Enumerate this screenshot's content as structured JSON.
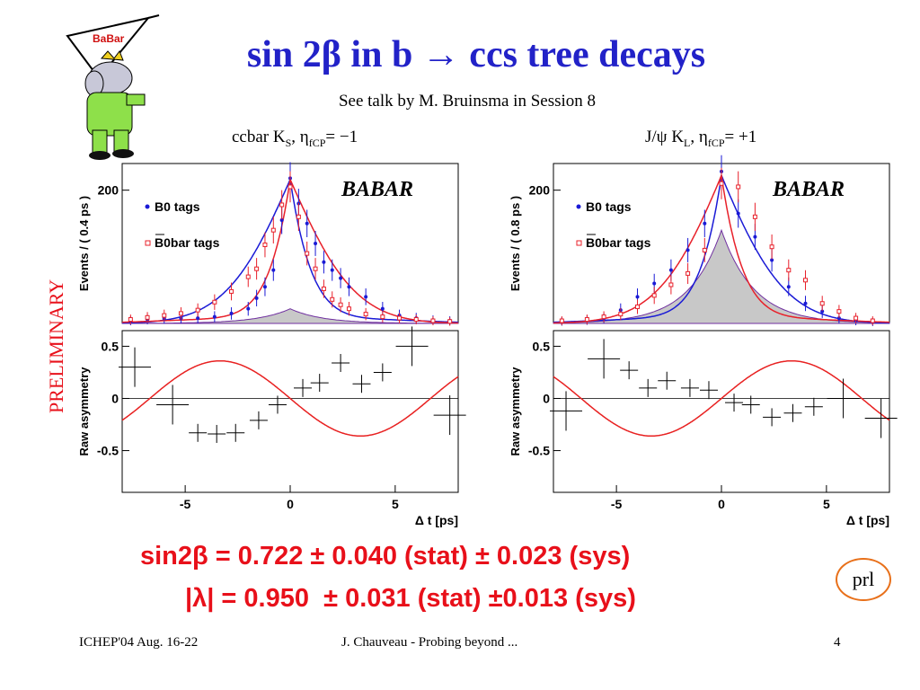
{
  "slide": {
    "title": "sin 2β in b → ccs tree decays",
    "subtitle": "See talk by M. Bruinsma in Session 8",
    "preliminary": "PRELIMINARY",
    "logo_text": "BaBar",
    "results": {
      "line1": "sin2β = 0.722 ± 0.040 (stat) ± 0.023 (sys)",
      "line2": "|λ| = 0.950  ± 0.031 (stat) ±0.013 (sys)"
    },
    "prl_badge": "prl",
    "footer": {
      "left": "ICHEP'04 Aug. 16-22",
      "center": "J. Chauveau - Probing beyond ...",
      "page": "4"
    }
  },
  "colors": {
    "title": "#2222c8",
    "results": "#e8101a",
    "b0": "#1a1ad6",
    "b0bar": "#e8202a",
    "asym_fit": "#e82020",
    "background": "#c8c8c8"
  },
  "chart_data": [
    {
      "type": "scatter",
      "channel_label": "ccbar K_S, η_fCP= −1",
      "logo": "BABAR",
      "top": {
        "ylabel": "Events / ( 0.4 ps )",
        "ytick": "200",
        "ylim": [
          0,
          240
        ],
        "legend": [
          "B0 tags",
          "B0bar tags"
        ],
        "series": [
          {
            "name": "B0 tags",
            "x": [
              -7.6,
              -6.8,
              -6.0,
              -5.2,
              -4.4,
              -3.6,
              -2.8,
              -2.0,
              -1.6,
              -1.2,
              -0.8,
              -0.4,
              0.0,
              0.4,
              0.8,
              1.2,
              1.6,
              2.0,
              2.4,
              2.8,
              3.6,
              4.4,
              5.2,
              6.0,
              6.8,
              7.6
            ],
            "y": [
              4,
              6,
              7,
              8,
              8,
              10,
              15,
              22,
              38,
              55,
              80,
              155,
              218,
              180,
              150,
              120,
              92,
              80,
              68,
              55,
              40,
              22,
              12,
              8,
              5,
              4
            ]
          },
          {
            "name": "B0bar tags",
            "x": [
              -7.6,
              -6.8,
              -6.0,
              -5.2,
              -4.4,
              -3.6,
              -2.8,
              -2.0,
              -1.6,
              -1.2,
              -0.8,
              -0.4,
              0.0,
              0.4,
              0.8,
              1.2,
              1.6,
              2.0,
              2.4,
              2.8,
              3.6,
              4.4,
              5.2,
              6.0,
              6.8,
              7.6
            ],
            "y": [
              6,
              9,
              12,
              15,
              20,
              32,
              48,
              70,
              82,
              118,
              140,
              178,
              205,
              160,
              105,
              82,
              52,
              36,
              28,
              22,
              14,
              10,
              8,
              6,
              4,
              3
            ]
          }
        ]
      },
      "bottom": {
        "ylabel": "Raw asymmetry",
        "yticks": [
          "0.5",
          "0",
          "-0.5"
        ],
        "ylim": [
          -0.9,
          0.65
        ],
        "xticks": [
          "-5",
          "0",
          "5"
        ],
        "xlabel": "Δ t [ps]",
        "xlim": [
          -8,
          8
        ],
        "points": {
          "x": [
            -7.4,
            -5.6,
            -4.4,
            -3.5,
            -2.6,
            -1.5,
            -0.6,
            0.6,
            1.4,
            2.4,
            3.4,
            4.4,
            5.8,
            7.6
          ],
          "y": [
            0.3,
            -0.06,
            -0.33,
            -0.34,
            -0.33,
            -0.21,
            -0.06,
            0.1,
            0.15,
            0.34,
            0.14,
            0.25,
            0.5,
            -0.16
          ]
        }
      }
    },
    {
      "type": "scatter",
      "channel_label": "J/ψ K_L, η_fCP= +1",
      "logo": "BABAR",
      "top": {
        "ylabel": "Events / ( 0.8 ps )",
        "ytick": "200",
        "ylim": [
          0,
          240
        ],
        "legend": [
          "B0 tags",
          "B0bar tags"
        ],
        "series": [
          {
            "name": "B0 tags",
            "x": [
              -7.6,
              -6.4,
              -5.6,
              -4.8,
              -4.0,
              -3.2,
              -2.4,
              -1.6,
              -0.8,
              0.0,
              0.8,
              1.6,
              2.4,
              3.2,
              4.0,
              4.8,
              5.6,
              6.4,
              7.2
            ],
            "y": [
              3,
              5,
              8,
              20,
              40,
              60,
              80,
              110,
              150,
              228,
              165,
              130,
              95,
              55,
              30,
              18,
              8,
              4,
              2
            ]
          },
          {
            "name": "B0bar tags",
            "x": [
              -7.6,
              -6.4,
              -5.6,
              -4.8,
              -4.0,
              -3.2,
              -2.4,
              -1.6,
              -0.8,
              0.0,
              0.8,
              1.6,
              2.4,
              3.2,
              4.0,
              4.8,
              5.6,
              6.4,
              7.2
            ],
            "y": [
              4,
              6,
              10,
              14,
              25,
              42,
              58,
              75,
              110,
              210,
              205,
              160,
              115,
              80,
              65,
              30,
              18,
              8,
              4
            ]
          }
        ]
      },
      "bottom": {
        "ylabel": "Raw asymmetry",
        "yticks": [
          "0.5",
          "0",
          "-0.5"
        ],
        "ylim": [
          -0.9,
          0.65
        ],
        "xticks": [
          "-5",
          "0",
          "5"
        ],
        "xlabel": "Δ t [ps]",
        "xlim": [
          -8,
          8
        ],
        "points": {
          "x": [
            -7.4,
            -5.6,
            -4.4,
            -3.5,
            -2.6,
            -1.5,
            -0.6,
            0.6,
            1.4,
            2.4,
            3.4,
            4.4,
            5.8,
            7.6
          ],
          "y": [
            -0.12,
            0.38,
            0.27,
            0.1,
            0.17,
            0.1,
            0.08,
            -0.04,
            -0.06,
            -0.18,
            -0.14,
            -0.08,
            0.0,
            -0.19
          ]
        }
      }
    }
  ]
}
